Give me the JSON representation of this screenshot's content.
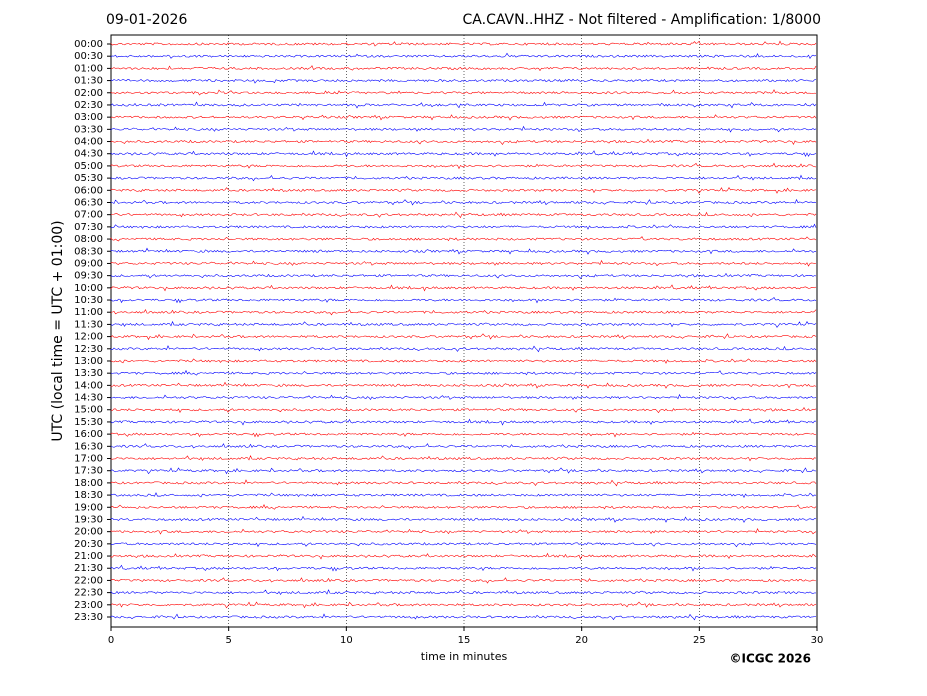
{
  "chart_data": {
    "type": "helicorder",
    "title": "09-01-2026",
    "subtitle": "CA.CAVN..HHZ - Not filtered - Amplification: 1/8000",
    "ylabel": "UTC (local time = UTC + 01:00)",
    "xlabel": "time in minutes",
    "copyright": "©ICGC 2026",
    "xlim": [
      0,
      30
    ],
    "xticks": [
      0,
      5,
      10,
      15,
      20,
      25,
      30
    ],
    "grid": true,
    "row_colors": [
      "#ff0000",
      "#0000ff"
    ],
    "categories": [
      "00:00",
      "00:30",
      "01:00",
      "01:30",
      "02:00",
      "02:30",
      "03:00",
      "03:30",
      "04:00",
      "04:30",
      "05:00",
      "05:30",
      "06:00",
      "06:30",
      "07:00",
      "07:30",
      "08:00",
      "08:30",
      "09:00",
      "09:30",
      "10:00",
      "10:30",
      "11:00",
      "11:30",
      "12:00",
      "12:30",
      "13:00",
      "13:30",
      "14:00",
      "14:30",
      "15:00",
      "15:30",
      "16:00",
      "16:30",
      "17:00",
      "17:30",
      "18:00",
      "18:30",
      "19:00",
      "19:30",
      "20:00",
      "20:30",
      "21:00",
      "21:30",
      "22:00",
      "22:30",
      "23:00",
      "23:30"
    ]
  }
}
